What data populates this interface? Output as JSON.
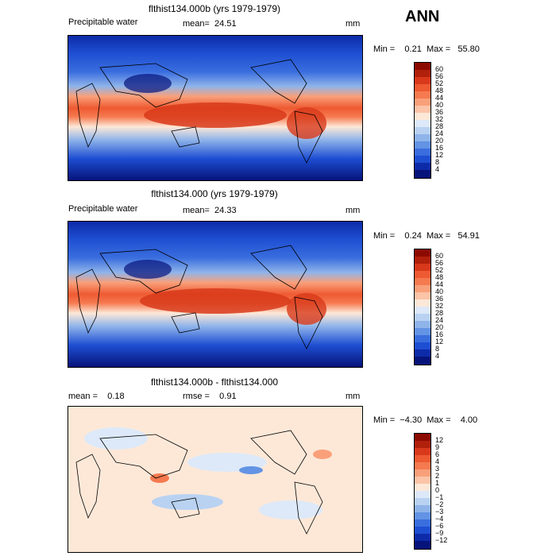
{
  "header": {
    "season": "ANN"
  },
  "panels": [
    {
      "title": "flthist134.000b (yrs 1979-1979)",
      "variable": "Precipitable water",
      "stat_text": "mean=  24.51",
      "units": "mm",
      "minmax_text": "Min =    0.21  Max =   55.80"
    },
    {
      "title": "flthist134.000 (yrs 1979-1979)",
      "variable": "Precipitable water",
      "stat_text": "mean=  24.33",
      "units": "mm",
      "minmax_text": "Min =    0.24  Max =   54.91"
    },
    {
      "title": "flthist134.000b - flthist134.000",
      "left_stat": "mean =    0.18",
      "stat_text": "rmse =    0.91",
      "units": "mm",
      "minmax_text": "Min =  −4.30  Max =    4.00"
    }
  ],
  "chart_data": [
    {
      "type": "heatmap",
      "title": "flthist134.000b (yrs 1979-1979)",
      "variable": "Precipitable water",
      "units": "mm",
      "mean": 24.51,
      "min": 0.21,
      "max": 55.8,
      "colorbar_levels": [
        "60",
        "56",
        "52",
        "48",
        "44",
        "40",
        "36",
        "32",
        "28",
        "24",
        "20",
        "16",
        "12",
        "8",
        "4"
      ],
      "colorbar_colors": [
        "#8c0a00",
        "#b0200a",
        "#d8391a",
        "#ee5a32",
        "#f67a50",
        "#f9a07a",
        "#fcc4a8",
        "#fde8d8",
        "#dde9f8",
        "#b9d2f2",
        "#8fb4ea",
        "#6393e4",
        "#3a6ede",
        "#1e4ed2",
        "#0d2ba8",
        "#06137a"
      ]
    },
    {
      "type": "heatmap",
      "title": "flthist134.000 (yrs 1979-1979)",
      "variable": "Precipitable water",
      "units": "mm",
      "mean": 24.33,
      "min": 0.24,
      "max": 54.91,
      "colorbar_levels": [
        "60",
        "56",
        "52",
        "48",
        "44",
        "40",
        "36",
        "32",
        "28",
        "24",
        "20",
        "16",
        "12",
        "8",
        "4"
      ],
      "colorbar_colors": [
        "#8c0a00",
        "#b0200a",
        "#d8391a",
        "#ee5a32",
        "#f67a50",
        "#f9a07a",
        "#fcc4a8",
        "#fde8d8",
        "#dde9f8",
        "#b9d2f2",
        "#8fb4ea",
        "#6393e4",
        "#3a6ede",
        "#1e4ed2",
        "#0d2ba8",
        "#06137a"
      ]
    },
    {
      "type": "heatmap",
      "title": "flthist134.000b - flthist134.000",
      "units": "mm",
      "mean": 0.18,
      "rmse": 0.91,
      "min": -4.3,
      "max": 4.0,
      "colorbar_levels": [
        "12",
        "9",
        "6",
        "4",
        "3",
        "2",
        "1",
        "0",
        "−1",
        "−2",
        "−3",
        "−4",
        "−6",
        "−9",
        "−12"
      ],
      "colorbar_colors": [
        "#8c0a00",
        "#b0200a",
        "#d8391a",
        "#ee5a32",
        "#f67a50",
        "#f9a07a",
        "#fcc4a8",
        "#fde8d8",
        "#dde9f8",
        "#b9d2f2",
        "#8fb4ea",
        "#6393e4",
        "#3a6ede",
        "#1e4ed2",
        "#0d2ba8",
        "#06137a"
      ]
    }
  ]
}
